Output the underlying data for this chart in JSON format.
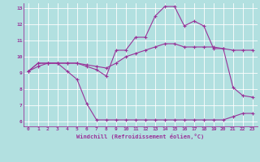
{
  "background_color": "#b2e0e0",
  "line_color": "#993399",
  "grid_color": "#ffffff",
  "xlabel": "Windchill (Refroidissement éolien,°C)",
  "xlim": [
    -0.5,
    23.5
  ],
  "ylim": [
    5.7,
    13.3
  ],
  "yticks": [
    6,
    7,
    8,
    9,
    10,
    11,
    12,
    13
  ],
  "xticks": [
    0,
    1,
    2,
    3,
    4,
    5,
    6,
    7,
    8,
    9,
    10,
    11,
    12,
    13,
    14,
    15,
    16,
    17,
    18,
    19,
    20,
    21,
    22,
    23
  ],
  "lines": [
    {
      "x": [
        0,
        1,
        2,
        3,
        4,
        5,
        6,
        7,
        8,
        9,
        10,
        11,
        12,
        13,
        14,
        15,
        16,
        17,
        18,
        19,
        20,
        21,
        22,
        23
      ],
      "y": [
        9.1,
        9.6,
        9.6,
        9.6,
        9.1,
        8.6,
        7.1,
        6.1,
        6.1,
        6.1,
        6.1,
        6.1,
        6.1,
        6.1,
        6.1,
        6.1,
        6.1,
        6.1,
        6.1,
        6.1,
        6.1,
        6.3,
        6.5,
        6.5
      ]
    },
    {
      "x": [
        0,
        1,
        2,
        3,
        4,
        5,
        6,
        7,
        8,
        9,
        10,
        11,
        12,
        13,
        14,
        15,
        16,
        17,
        18,
        19,
        20,
        21,
        22,
        23
      ],
      "y": [
        9.1,
        9.6,
        9.6,
        9.6,
        9.6,
        9.6,
        9.4,
        9.2,
        8.8,
        10.4,
        10.4,
        11.2,
        11.2,
        12.5,
        13.1,
        13.1,
        11.9,
        12.2,
        11.9,
        10.5,
        10.5,
        8.1,
        7.6,
        7.5
      ]
    },
    {
      "x": [
        0,
        1,
        2,
        3,
        4,
        5,
        6,
        7,
        8,
        9,
        10,
        11,
        12,
        13,
        14,
        15,
        16,
        17,
        18,
        19,
        20,
        21,
        22,
        23
      ],
      "y": [
        9.1,
        9.4,
        9.6,
        9.6,
        9.6,
        9.6,
        9.5,
        9.4,
        9.3,
        9.6,
        10.0,
        10.2,
        10.4,
        10.6,
        10.8,
        10.8,
        10.6,
        10.6,
        10.6,
        10.6,
        10.5,
        10.4,
        10.4,
        10.4
      ]
    }
  ]
}
